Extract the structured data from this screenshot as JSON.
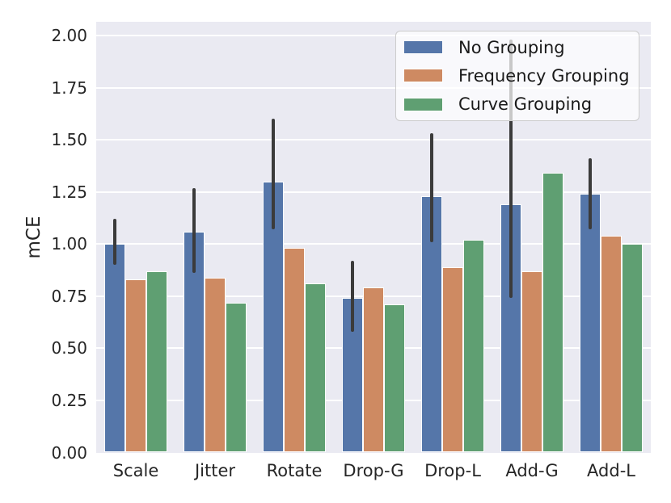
{
  "figure": {
    "background": "#ffffff",
    "plot_background": "#eaeaf2",
    "grid_color": "#ffffff",
    "text_color": "#262626",
    "errorbar_color": "#3b3b3b"
  },
  "chart_data": {
    "type": "bar",
    "title": "",
    "xlabel": "",
    "ylabel": "mCE",
    "categories": [
      "Scale",
      "Jitter",
      "Rotate",
      "Drop-G",
      "Drop-L",
      "Add-G",
      "Add-L"
    ],
    "series": [
      {
        "name": "No Grouping",
        "color": "#5576a9",
        "values": [
          1.0,
          1.06,
          1.3,
          0.74,
          1.23,
          1.19,
          1.24
        ],
        "error_low": [
          0.9,
          0.86,
          1.07,
          0.58,
          1.01,
          0.74,
          1.07
        ],
        "error_high": [
          1.12,
          1.27,
          1.6,
          0.92,
          1.53,
          1.98,
          1.41
        ]
      },
      {
        "name": "Frequency Grouping",
        "color": "#ce8a62",
        "values": [
          0.83,
          0.84,
          0.98,
          0.79,
          0.89,
          0.87,
          1.04
        ]
      },
      {
        "name": "Curve Grouping",
        "color": "#5f9f72",
        "values": [
          0.87,
          0.72,
          0.81,
          0.71,
          1.02,
          1.34,
          1.0
        ]
      }
    ],
    "ylim": [
      0,
      2.066
    ],
    "ytick_labels": [
      "0.00",
      "0.25",
      "0.50",
      "0.75",
      "1.00",
      "1.25",
      "1.50",
      "1.75",
      "2.00"
    ],
    "grid": true,
    "legend_position": "upper right"
  }
}
